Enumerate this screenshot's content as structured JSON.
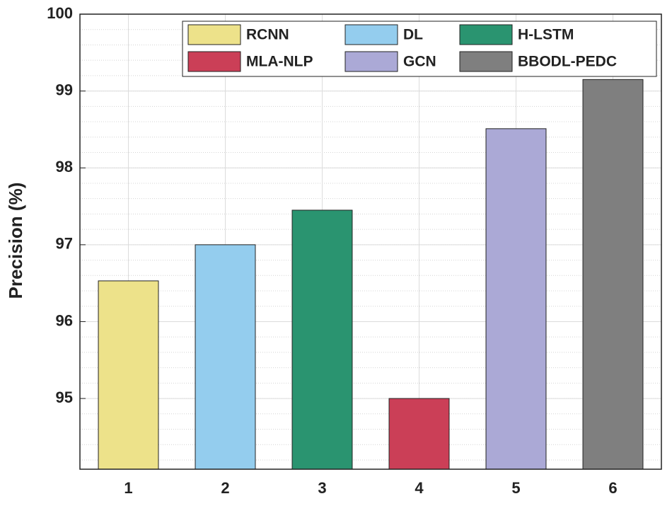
{
  "chart_data": {
    "type": "bar",
    "y_label": "Precision (%)",
    "categories": [
      "1",
      "2",
      "3",
      "4",
      "5",
      "6"
    ],
    "values": [
      96.53,
      97.0,
      97.45,
      95.0,
      98.51,
      99.15
    ],
    "legend": [
      "RCNN",
      "DL",
      "H-LSTM",
      "MLA-NLP",
      "GCN",
      "BBODL-PEDC"
    ],
    "colors": [
      "#ede28a",
      "#94cdee",
      "#2a9470",
      "#cb3f57",
      "#aba9d6",
      "#7f7f7f"
    ],
    "ylim": [
      94.08,
      100
    ],
    "yticks": [
      95,
      96,
      97,
      98,
      99,
      100
    ],
    "grid": true,
    "minor_grid": true,
    "legend_position": "top-right"
  }
}
